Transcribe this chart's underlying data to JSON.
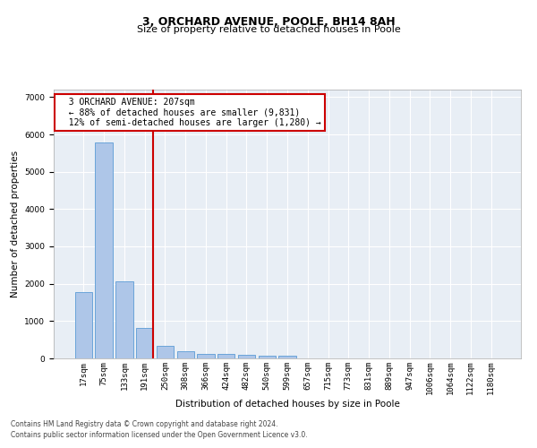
{
  "title": "3, ORCHARD AVENUE, POOLE, BH14 8AH",
  "subtitle": "Size of property relative to detached houses in Poole",
  "xlabel": "Distribution of detached houses by size in Poole",
  "ylabel": "Number of detached properties",
  "footnote1": "Contains HM Land Registry data © Crown copyright and database right 2024.",
  "footnote2": "Contains public sector information licensed under the Open Government Licence v3.0.",
  "bar_labels": [
    "17sqm",
    "75sqm",
    "133sqm",
    "191sqm",
    "250sqm",
    "308sqm",
    "366sqm",
    "424sqm",
    "482sqm",
    "540sqm",
    "599sqm",
    "657sqm",
    "715sqm",
    "773sqm",
    "831sqm",
    "889sqm",
    "947sqm",
    "1006sqm",
    "1064sqm",
    "1122sqm",
    "1180sqm"
  ],
  "bar_values": [
    1780,
    5780,
    2060,
    820,
    345,
    200,
    125,
    110,
    100,
    75,
    70,
    0,
    0,
    0,
    0,
    0,
    0,
    0,
    0,
    0,
    0
  ],
  "bar_color": "#aec6e8",
  "bar_edge_color": "#5b9bd5",
  "vline_pos": 3.42,
  "vline_color": "#cc0000",
  "annotation_text": "  3 ORCHARD AVENUE: 207sqm\n  ← 88% of detached houses are smaller (9,831)\n  12% of semi-detached houses are larger (1,280) →",
  "ylim": [
    0,
    7200
  ],
  "yticks": [
    0,
    1000,
    2000,
    3000,
    4000,
    5000,
    6000,
    7000
  ],
  "bg_color": "#e8eef5",
  "grid_color": "#ffffff",
  "title_fontsize": 9,
  "subtitle_fontsize": 8,
  "axis_label_fontsize": 7.5,
  "tick_fontsize": 6.5,
  "annot_fontsize": 7
}
